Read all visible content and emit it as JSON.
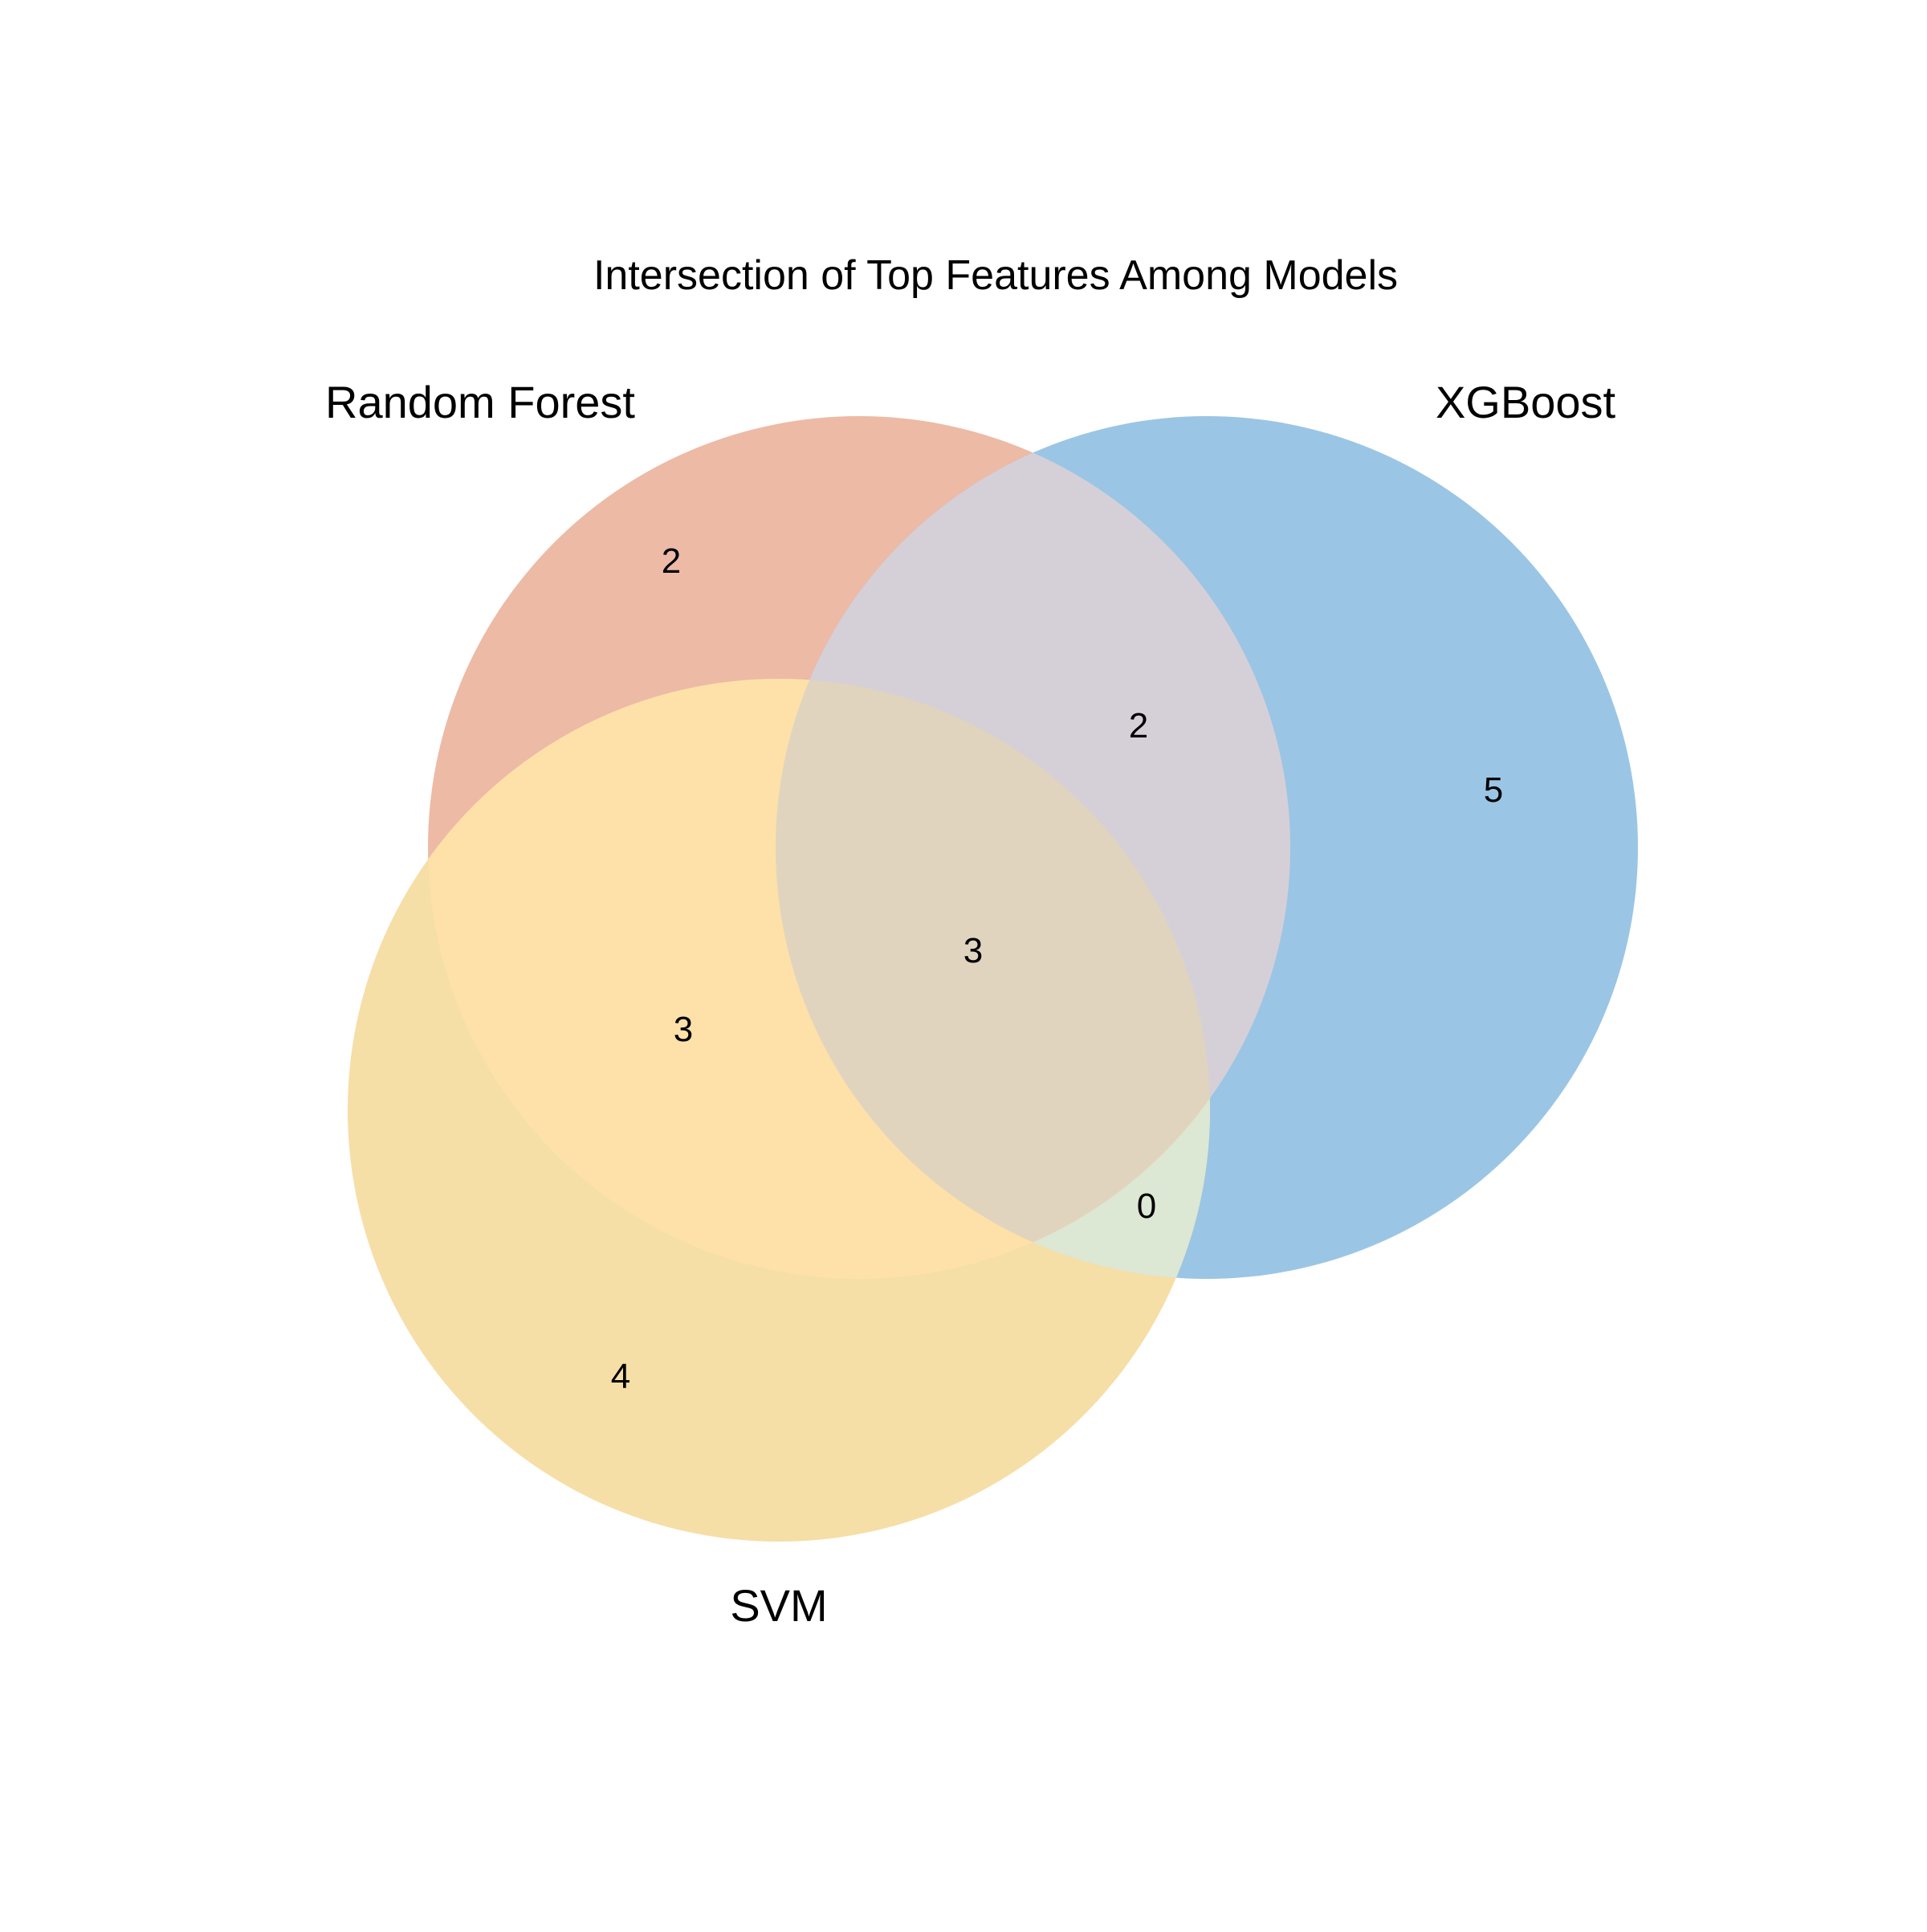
{
  "title": "Intersection of Top Features Among Models",
  "colors": {
    "random_forest": "#E38E6A",
    "xgboost": "#3A8DC8",
    "svm": "#F3C351",
    "rf_only": "#EDBAA6",
    "xgb_only": "#9BC5E4",
    "svm_only": "#F6DEA7",
    "rf_xgb": "#D5D0D8",
    "rf_svm": "#FDE1A9",
    "xgb_svm": "#DCE7D4",
    "rf_xgb_svm": "#E1D4BE",
    "background": "#FFFFFF"
  },
  "sets": {
    "random_forest": "Random Forest",
    "xgboost": "XGBoost",
    "svm": "SVM"
  },
  "regions": {
    "rf_only": "2",
    "xgb_only": "5",
    "svm_only": "4",
    "rf_xgb": "2",
    "rf_svm": "3",
    "xgb_svm": "0",
    "rf_xgb_svm": "3"
  }
}
